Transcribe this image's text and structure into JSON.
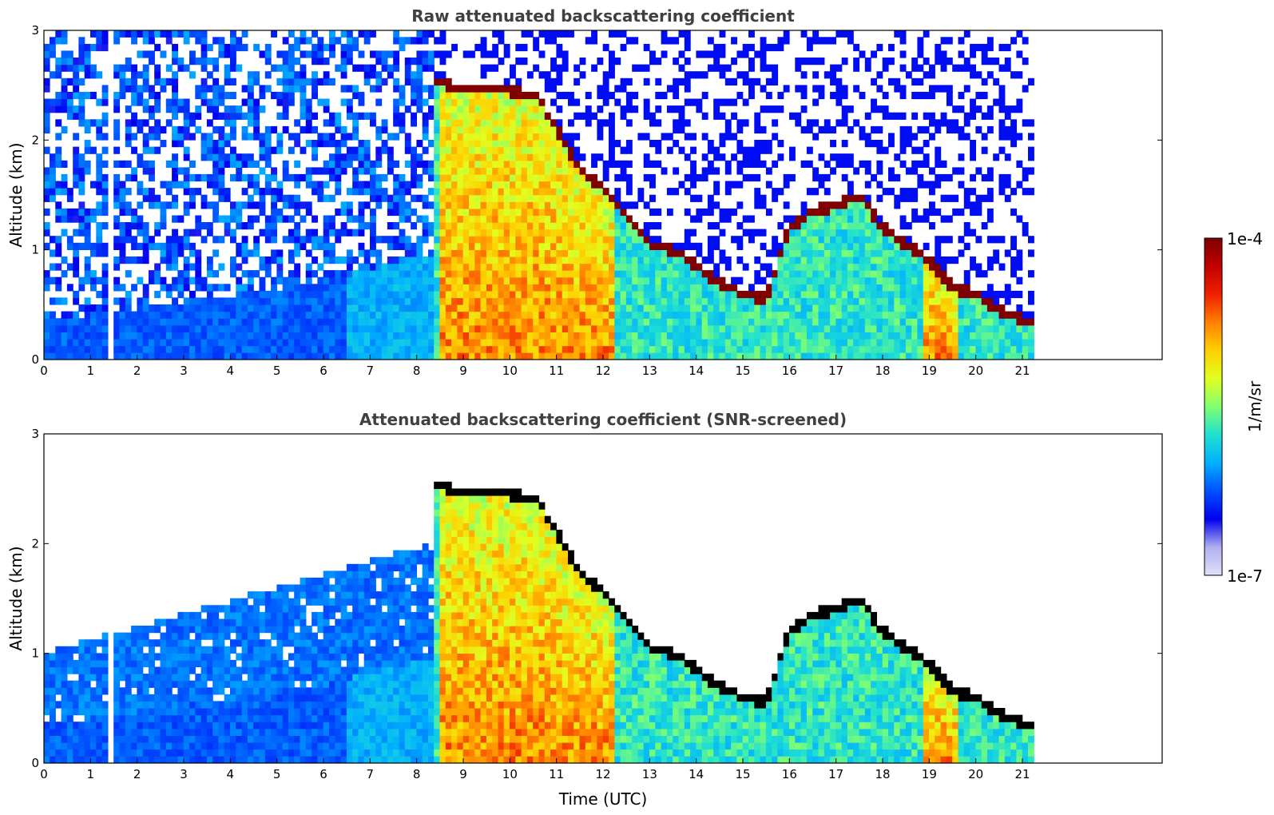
{
  "chart_data": [
    {
      "type": "heatmap",
      "title": "Raw attenuated backscattering coefficient",
      "xlabel": "",
      "ylabel": "Altitude (km)",
      "xlim": [
        0,
        24
      ],
      "ylim": [
        0,
        3
      ],
      "x_ticks": [
        "0",
        "1",
        "2",
        "3",
        "4",
        "5",
        "6",
        "7",
        "8",
        "9",
        "10",
        "11",
        "12",
        "13",
        "14",
        "15",
        "16",
        "17",
        "18",
        "19",
        "20",
        "21"
      ],
      "y_ticks": [
        "0",
        "1",
        "2",
        "3"
      ],
      "data_extent_hours": [
        0,
        21.25
      ],
      "gap_hours": [
        1.42,
        1.55
      ],
      "cloud_base_km": [
        [
          8.4,
          2.55
        ],
        [
          9.0,
          2.45
        ],
        [
          10.0,
          2.45
        ],
        [
          10.6,
          2.4
        ],
        [
          11.0,
          2.1
        ],
        [
          11.5,
          1.75
        ],
        [
          12.0,
          1.55
        ],
        [
          12.5,
          1.3
        ],
        [
          13.0,
          1.05
        ],
        [
          13.6,
          0.98
        ],
        [
          14.0,
          0.85
        ],
        [
          14.5,
          0.7
        ],
        [
          15.0,
          0.6
        ],
        [
          15.5,
          0.55
        ],
        [
          16.0,
          1.2
        ],
        [
          16.5,
          1.35
        ],
        [
          17.0,
          1.4
        ],
        [
          17.5,
          1.5
        ],
        [
          18.0,
          1.2
        ],
        [
          18.5,
          1.05
        ],
        [
          19.0,
          0.9
        ],
        [
          19.5,
          0.65
        ],
        [
          20.0,
          0.6
        ],
        [
          20.5,
          0.45
        ],
        [
          21.25,
          0.32
        ]
      ]
    },
    {
      "type": "heatmap",
      "title": "Attenuated backscattering coefficient (SNR-screened)",
      "xlabel": "Time (UTC)",
      "ylabel": "Altitude (km)",
      "xlim": [
        0,
        24
      ],
      "ylim": [
        0,
        3
      ],
      "x_ticks": [
        "0",
        "1",
        "2",
        "3",
        "4",
        "5",
        "6",
        "7",
        "8",
        "9",
        "10",
        "11",
        "12",
        "13",
        "14",
        "15",
        "16",
        "17",
        "18",
        "19",
        "20",
        "21"
      ],
      "y_ticks": [
        "0",
        "1",
        "2",
        "3"
      ],
      "data_extent_hours": [
        0,
        21.25
      ],
      "gap_hours": [
        1.42,
        1.55
      ]
    }
  ],
  "colorbar": {
    "label": "1/m/sr",
    "min_label": "1e-7",
    "max_label": "1e-4",
    "colors": [
      "#e0e0f8",
      "#b0b0f0",
      "#0000f0",
      "#0050ff",
      "#00b0ff",
      "#20e0d0",
      "#80ff70",
      "#e0ff20",
      "#ffd000",
      "#ff8000",
      "#f02000",
      "#c00000",
      "#800000"
    ]
  }
}
